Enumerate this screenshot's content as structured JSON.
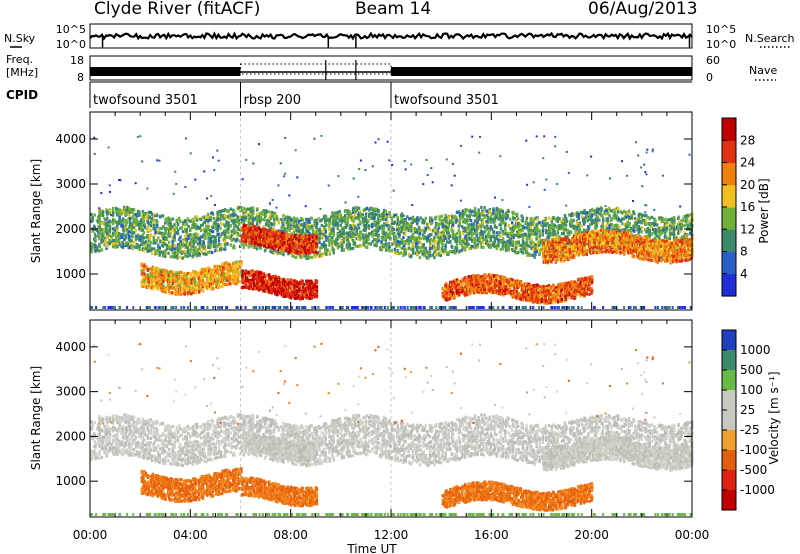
{
  "header": {
    "station": "Clyde River (fitACF)",
    "beam": "Beam 14",
    "date": "06/Aug/2013"
  },
  "noise_panel": {
    "left_label": "N.Sky",
    "y_ticks": [
      "10^5",
      "10^0"
    ],
    "right_label": "N.Search",
    "right_ticks": [
      "10^5",
      "10^0"
    ]
  },
  "freq_panel": {
    "left_label_line1": "Freq.",
    "left_label_line2": "[MHz]",
    "y_ticks": [
      "18",
      "8"
    ],
    "right_label": "Nave",
    "right_ticks": [
      "60",
      "0"
    ]
  },
  "cpid_panel": {
    "label": "CPID",
    "segments": [
      {
        "name": "twofsound 3501",
        "start_hour": 0,
        "end_hour": 6
      },
      {
        "name": "rbsp 200",
        "start_hour": 6,
        "end_hour": 12
      },
      {
        "name": "twofsound 3501",
        "start_hour": 12,
        "end_hour": 24
      }
    ]
  },
  "axes": {
    "xlabel": "Time UT",
    "x_ticks": [
      "00:00",
      "04:00",
      "08:00",
      "12:00",
      "16:00",
      "20:00",
      "00:00"
    ],
    "ylabel": "Slant Range [km]",
    "y_ticks": [
      "1000",
      "2000",
      "3000",
      "4000"
    ]
  },
  "power_colorbar": {
    "label": "Power [dB]",
    "ticks": [
      "4",
      "8",
      "12",
      "16",
      "20",
      "24",
      "28"
    ],
    "colors": [
      "#1f2ed8",
      "#2a5fc7",
      "#3d8a6a",
      "#6fb03a",
      "#f0c020",
      "#f08010",
      "#e03010",
      "#c00000"
    ]
  },
  "velocity_colorbar": {
    "label": "Velocity [m s⁻¹]",
    "ticks": [
      "1000",
      "500",
      "100",
      "25",
      "-25",
      "-100",
      "-500",
      "-1000"
    ],
    "colors": [
      "#2040c0",
      "#3d8a6a",
      "#66bb44",
      "#c8c8c0",
      "#c8c8c0",
      "#f0a030",
      "#e06010",
      "#e02010",
      "#c00000"
    ]
  },
  "chart_data": {
    "type": "heatmap",
    "title": "Clyde River (fitACF) Beam 14 06/Aug/2013",
    "xlabel": "Time UT",
    "ylabel": "Slant Range [km]",
    "xlim": [
      "00:00",
      "24:00"
    ],
    "ylim": [
      200,
      4600
    ],
    "panels": [
      "Power [dB]",
      "Velocity [m s-1]"
    ],
    "scatter_bands": [
      {
        "range_km": [
          1500,
          2400
        ],
        "hours": [
          0,
          24
        ],
        "power_db": 12,
        "velocity_class": "-25 to 25"
      },
      {
        "range_km": [
          700,
          1200
        ],
        "hours": [
          2,
          6
        ],
        "power_db": 20,
        "velocity_class": "-100 to -500"
      },
      {
        "range_km": [
          1600,
          2000
        ],
        "hours": [
          6,
          9
        ],
        "power_db": 26,
        "velocity_class": "-25 to 25"
      },
      {
        "range_km": [
          600,
          1000
        ],
        "hours": [
          6,
          9
        ],
        "power_db": 28,
        "velocity_class": "-100 to -500"
      },
      {
        "range_km": [
          500,
          900
        ],
        "hours": [
          14,
          20
        ],
        "power_db": 24,
        "velocity_class": "-100 to -500"
      },
      {
        "range_km": [
          1400,
          1900
        ],
        "hours": [
          18,
          24
        ],
        "power_db": 22,
        "velocity_class": "-25 to 25"
      }
    ]
  }
}
